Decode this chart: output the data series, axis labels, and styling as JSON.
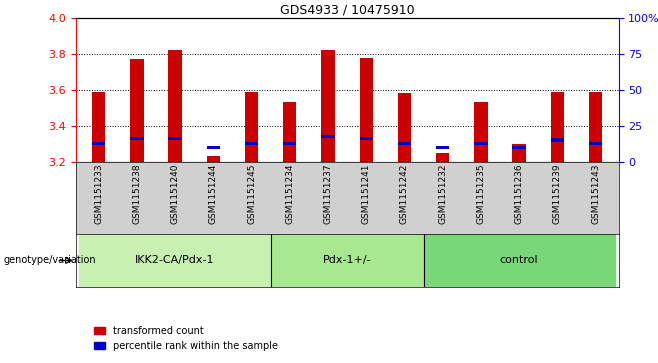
{
  "title": "GDS4933 / 10475910",
  "samples": [
    "GSM1151233",
    "GSM1151238",
    "GSM1151240",
    "GSM1151244",
    "GSM1151245",
    "GSM1151234",
    "GSM1151237",
    "GSM1151241",
    "GSM1151242",
    "GSM1151232",
    "GSM1151235",
    "GSM1151236",
    "GSM1151239",
    "GSM1151243"
  ],
  "red_values": [
    3.59,
    3.77,
    3.82,
    3.23,
    3.59,
    3.53,
    3.82,
    3.78,
    3.58,
    3.25,
    3.53,
    3.3,
    3.59,
    3.59
  ],
  "blue_values": [
    3.3,
    3.33,
    3.33,
    3.28,
    3.3,
    3.3,
    3.34,
    3.33,
    3.3,
    3.28,
    3.3,
    3.28,
    3.32,
    3.3
  ],
  "ylim_left": [
    3.2,
    4.0
  ],
  "ylim_right": [
    0,
    100
  ],
  "yticks_left": [
    3.2,
    3.4,
    3.6,
    3.8,
    4.0
  ],
  "yticks_right": [
    0,
    25,
    50,
    75,
    100
  ],
  "ytick_labels_right": [
    "0",
    "25",
    "50",
    "75",
    "100%"
  ],
  "hlines": [
    3.4,
    3.6,
    3.8
  ],
  "groups": [
    {
      "label": "IKK2-CA/Pdx-1",
      "start": 0,
      "end": 5
    },
    {
      "label": "Pdx-1+/-",
      "start": 5,
      "end": 9
    },
    {
      "label": "control",
      "start": 9,
      "end": 14
    }
  ],
  "group_colors": [
    "#c8f0b0",
    "#a8e890",
    "#78d878"
  ],
  "bar_width": 0.35,
  "red_color": "#cc0000",
  "blue_color": "#0000cc",
  "bg_color": "#d0d0d0",
  "legend_red": "transformed count",
  "legend_blue": "percentile rank within the sample",
  "genotype_label": "genotype/variation"
}
